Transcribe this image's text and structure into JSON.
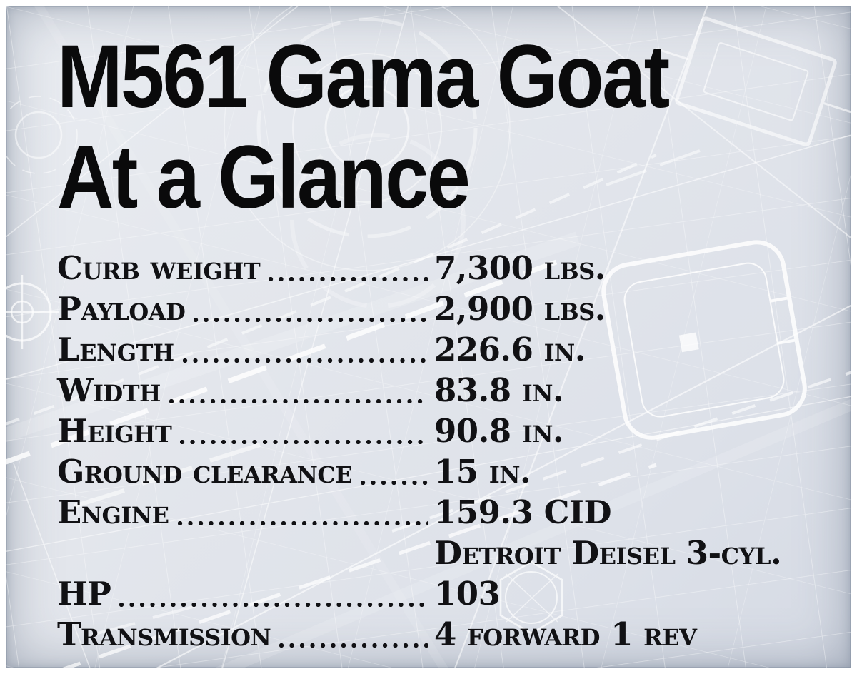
{
  "colors": {
    "panel_background": "#e2e6ec",
    "frame": "#ffffff",
    "text": "#111114",
    "title_text": "#0a0a0b",
    "blueprint_line": "#ffffff"
  },
  "title": {
    "line1": "M561 Gama Goat",
    "line2": "At a Glance"
  },
  "specs": {
    "rows": [
      {
        "label": "Curb weight",
        "value": "7,300 lbs."
      },
      {
        "label": "Payload",
        "value": "2,900 lbs."
      },
      {
        "label": "Length",
        "value": "226.6 in."
      },
      {
        "label": "Width",
        "value": "83.8 in."
      },
      {
        "label": "Height",
        "value": "90.8 in."
      },
      {
        "label": "Ground clearance",
        "value": "15 in."
      },
      {
        "label": "Engine",
        "value": "159.3 CID",
        "value2": "Detroit Deisel 3-cyl."
      },
      {
        "label": "HP",
        "value": "103"
      },
      {
        "label": "Transmission",
        "value": "4 forward 1 rev"
      }
    ]
  }
}
